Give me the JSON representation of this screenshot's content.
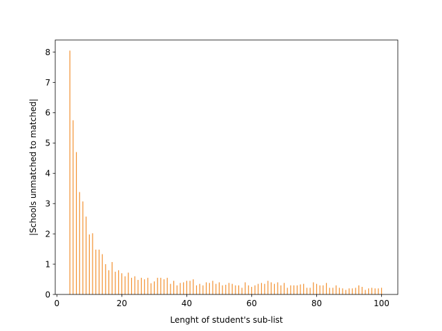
{
  "chart_data": {
    "type": "bar",
    "title": "",
    "xlabel": "Lenght of student's sub-list",
    "ylabel": "|Schools unmatched to matched|",
    "xlim": [
      -0.5,
      105
    ],
    "ylim": [
      0,
      8.4
    ],
    "xticks": [
      0,
      20,
      40,
      60,
      80,
      100
    ],
    "yticks": [
      0,
      1,
      2,
      3,
      4,
      5,
      6,
      7,
      8
    ],
    "grid": false,
    "bar_color": "#f28e2b",
    "bar_width": 0.25,
    "x": [
      4,
      5,
      6,
      7,
      8,
      9,
      10,
      11,
      12,
      13,
      14,
      15,
      16,
      17,
      18,
      19,
      20,
      21,
      22,
      23,
      24,
      25,
      26,
      27,
      28,
      29,
      30,
      31,
      32,
      33,
      34,
      35,
      36,
      37,
      38,
      39,
      40,
      41,
      42,
      43,
      44,
      45,
      46,
      47,
      48,
      49,
      50,
      51,
      52,
      53,
      54,
      55,
      56,
      57,
      58,
      59,
      60,
      61,
      62,
      63,
      64,
      65,
      66,
      67,
      68,
      69,
      70,
      71,
      72,
      73,
      74,
      75,
      76,
      77,
      78,
      79,
      80,
      81,
      82,
      83,
      84,
      85,
      86,
      87,
      88,
      89,
      90,
      91,
      92,
      93,
      94,
      95,
      96,
      97,
      98,
      99,
      100
    ],
    "values": [
      8.05,
      5.75,
      4.7,
      3.38,
      3.07,
      2.57,
      1.98,
      2.02,
      1.48,
      1.48,
      1.33,
      1.0,
      0.8,
      1.07,
      0.75,
      0.8,
      0.7,
      0.6,
      0.72,
      0.55,
      0.6,
      0.48,
      0.55,
      0.5,
      0.55,
      0.37,
      0.43,
      0.55,
      0.55,
      0.5,
      0.55,
      0.35,
      0.45,
      0.3,
      0.38,
      0.4,
      0.45,
      0.45,
      0.5,
      0.3,
      0.35,
      0.3,
      0.4,
      0.38,
      0.45,
      0.35,
      0.4,
      0.3,
      0.32,
      0.38,
      0.35,
      0.3,
      0.3,
      0.22,
      0.4,
      0.3,
      0.25,
      0.3,
      0.35,
      0.38,
      0.35,
      0.45,
      0.4,
      0.35,
      0.4,
      0.3,
      0.38,
      0.22,
      0.3,
      0.3,
      0.3,
      0.33,
      0.35,
      0.22,
      0.22,
      0.4,
      0.35,
      0.3,
      0.3,
      0.38,
      0.22,
      0.22,
      0.3,
      0.22,
      0.2,
      0.15,
      0.2,
      0.2,
      0.22,
      0.3,
      0.25,
      0.15,
      0.2,
      0.22,
      0.2,
      0.2,
      0.22
    ]
  }
}
